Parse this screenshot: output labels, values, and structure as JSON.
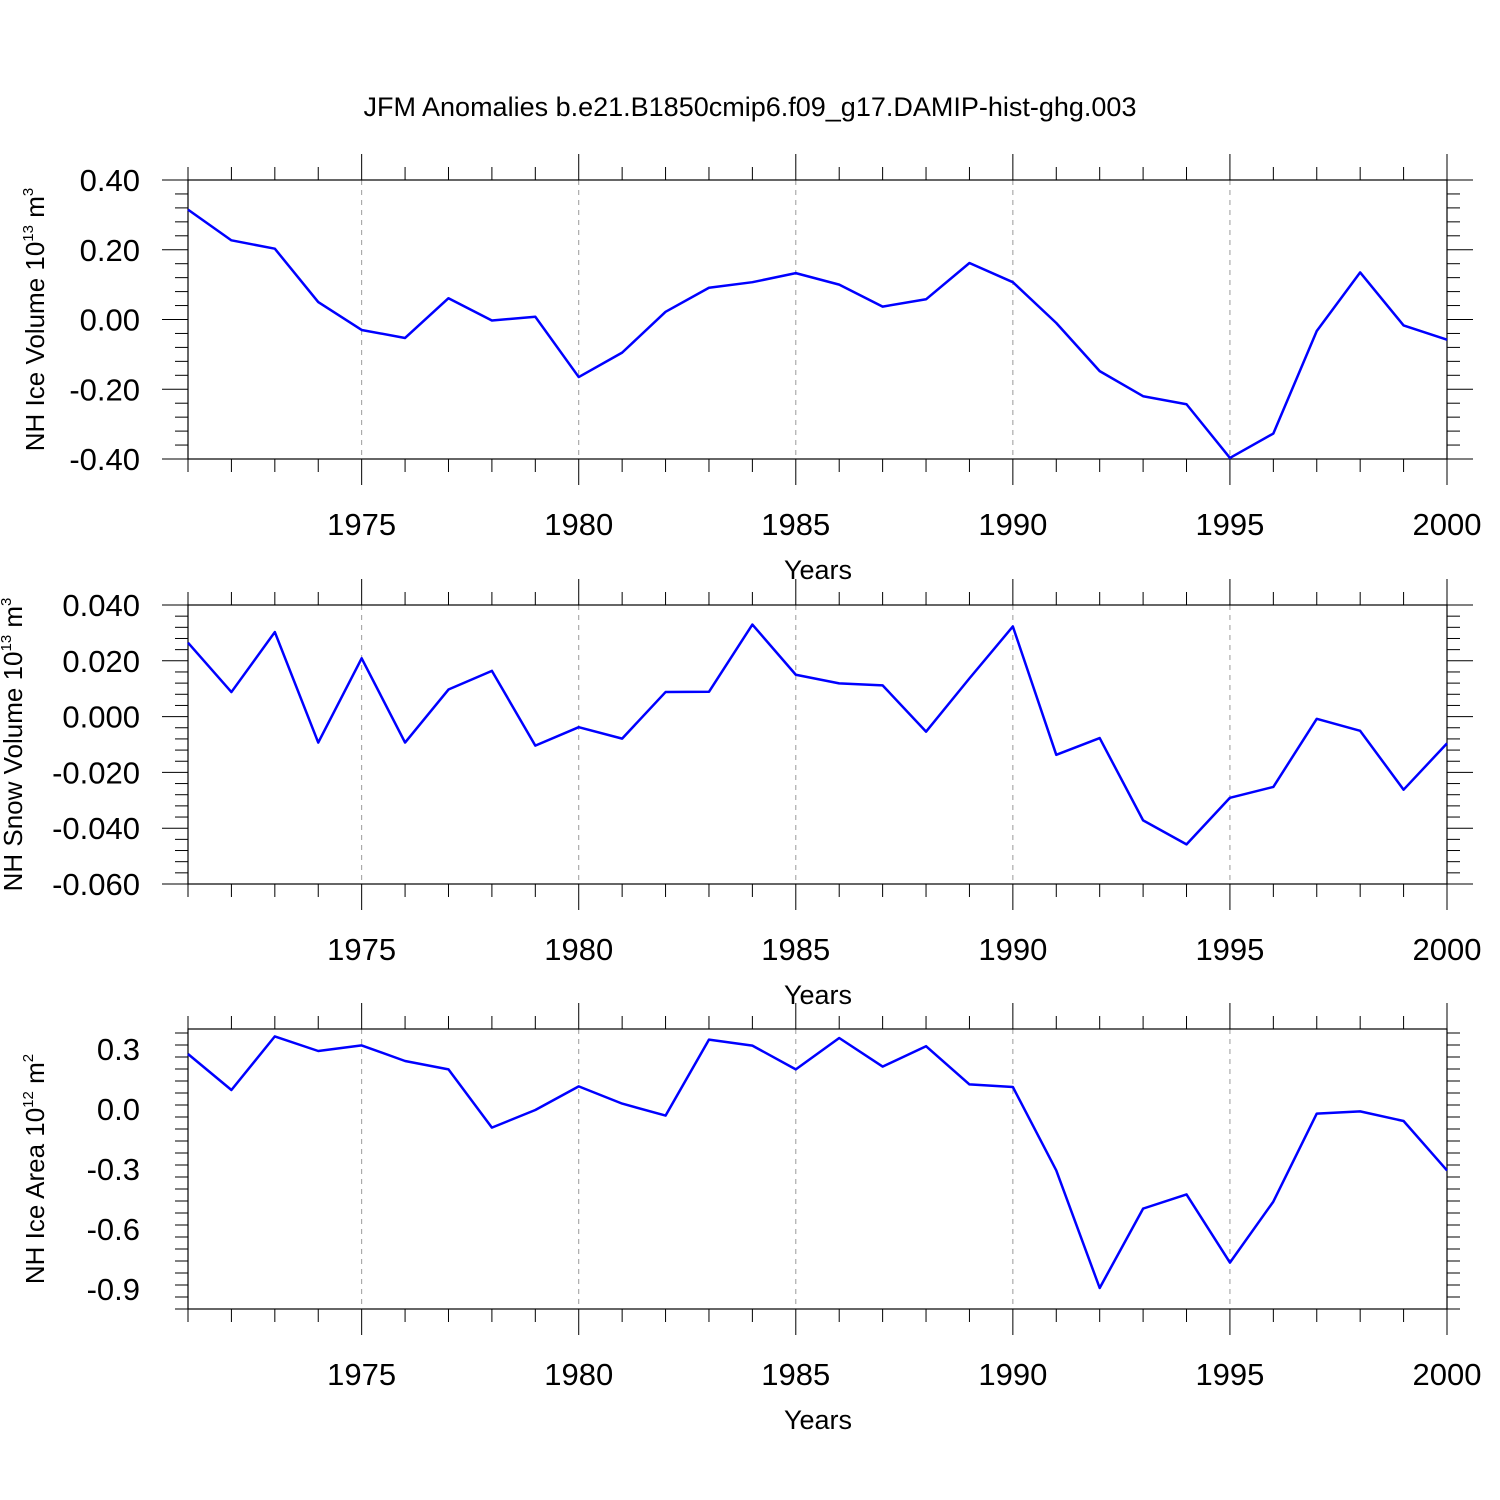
{
  "title": "JFM Anomalies b.e21.B1850cmip6.f09_g17.DAMIP-hist-ghg.003",
  "chart_data": [
    {
      "type": "line",
      "ylabel": {
        "text": "NH Ice Volume 10",
        "exp": "13",
        "unit": " m",
        "unit_exp": "3"
      },
      "xlabel": "Years",
      "xlim": [
        1971,
        2000
      ],
      "ylim": [
        -0.4,
        0.4
      ],
      "yticks": [
        0.4,
        0.2,
        0.0,
        -0.2,
        -0.4
      ],
      "ytick_labels": [
        "0.40",
        "0.20",
        "0.00",
        "-0.20",
        "-0.40"
      ],
      "xtick_labels": [
        "1975",
        "1980",
        "1985",
        "1990",
        "1995",
        "2000"
      ],
      "grid": "dashed vertical at major x ticks",
      "line_color": "#0000ff",
      "x": [
        1971,
        1972,
        1973,
        1974,
        1975,
        1976,
        1977,
        1978,
        1979,
        1980,
        1981,
        1982,
        1983,
        1984,
        1985,
        1986,
        1987,
        1988,
        1989,
        1990,
        1991,
        1992,
        1993,
        1994,
        1995,
        1996,
        1997,
        1998,
        1999,
        2000
      ],
      "values": [
        0.315,
        0.227,
        0.203,
        0.05,
        -0.03,
        -0.053,
        0.061,
        -0.003,
        0.008,
        -0.165,
        -0.095,
        0.022,
        0.091,
        0.107,
        0.133,
        0.1,
        0.037,
        0.058,
        0.162,
        0.107,
        -0.01,
        -0.148,
        -0.22,
        -0.243,
        -0.397,
        -0.327,
        -0.033,
        0.135,
        -0.017,
        -0.058
      ]
    },
    {
      "type": "line",
      "ylabel": {
        "text": "NH Snow Volume 10",
        "exp": "13",
        "unit": " m",
        "unit_exp": "3"
      },
      "xlabel": "Years",
      "xlim": [
        1971,
        2000
      ],
      "ylim": [
        -0.06,
        0.04
      ],
      "yticks": [
        0.04,
        0.02,
        0.0,
        -0.02,
        -0.04,
        -0.06
      ],
      "ytick_labels": [
        "0.040",
        "0.020",
        "0.000",
        "-0.020",
        "-0.040",
        "-0.060"
      ],
      "xtick_labels": [
        "1975",
        "1980",
        "1985",
        "1990",
        "1995",
        "2000"
      ],
      "grid": "dashed vertical at major x ticks",
      "line_color": "#0000ff",
      "x": [
        1971,
        1972,
        1973,
        1974,
        1975,
        1976,
        1977,
        1978,
        1979,
        1980,
        1981,
        1982,
        1983,
        1984,
        1985,
        1986,
        1987,
        1988,
        1989,
        1990,
        1991,
        1992,
        1993,
        1994,
        1995,
        1996,
        1997,
        1998,
        1999,
        2000
      ],
      "values": [
        0.0265,
        0.0088,
        0.0303,
        -0.0093,
        0.0209,
        -0.0093,
        0.0097,
        0.0164,
        -0.0104,
        -0.0038,
        -0.0079,
        0.0088,
        0.0089,
        0.033,
        0.015,
        0.0119,
        0.0112,
        -0.0054,
        0.0137,
        0.0323,
        -0.0137,
        -0.0077,
        -0.0372,
        -0.0458,
        -0.0291,
        -0.0252,
        -0.0008,
        -0.0051,
        -0.0262,
        -0.0096
      ]
    },
    {
      "type": "line",
      "ylabel": {
        "text": "NH Ice Area 10",
        "exp": "12",
        "unit": " m",
        "unit_exp": "2"
      },
      "xlabel": "Years",
      "xlim": [
        1971,
        2000
      ],
      "ylim": [
        -1.0,
        0.4
      ],
      "yticks": [
        0.3,
        0.0,
        -0.3,
        -0.6,
        -0.9
      ],
      "ytick_labels": [
        "0.3",
        "0.0",
        "-0.3",
        "-0.6",
        "-0.9"
      ],
      "xtick_labels": [
        "1975",
        "1980",
        "1985",
        "1990",
        "1995",
        "2000"
      ],
      "grid": "dashed vertical at major x ticks",
      "line_color": "#0000ff",
      "x": [
        1971,
        1972,
        1973,
        1974,
        1975,
        1976,
        1977,
        1978,
        1979,
        1980,
        1981,
        1982,
        1983,
        1984,
        1985,
        1986,
        1987,
        1988,
        1989,
        1990,
        1991,
        1992,
        1993,
        1994,
        1995,
        1996,
        1997,
        1998,
        1999,
        2000
      ],
      "values": [
        0.275,
        0.095,
        0.363,
        0.29,
        0.318,
        0.24,
        0.198,
        -0.093,
        -0.005,
        0.113,
        0.027,
        -0.033,
        0.347,
        0.317,
        0.198,
        0.355,
        0.212,
        0.314,
        0.123,
        0.11,
        -0.307,
        -0.895,
        -0.498,
        -0.427,
        -0.768,
        -0.463,
        -0.023,
        -0.012,
        -0.06,
        -0.307
      ]
    }
  ]
}
